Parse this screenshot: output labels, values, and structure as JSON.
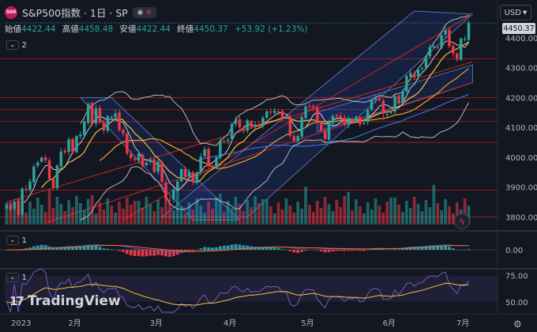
{
  "header": {
    "logo_text": "500",
    "symbol": "S&P500指数 · 1日 · SP",
    "eye_icon": "eye-icon",
    "wave_icon": "wave-icon"
  },
  "ohlc": {
    "open_label": "始値",
    "open": "4422.44",
    "high_label": "高値",
    "high": "4458.48",
    "low_label": "安値",
    "low": "4422.44",
    "close_label": "終値",
    "close": "4450.37",
    "change": "+53.92 (+1.23%)"
  },
  "indicator_count": "2",
  "pane2_label": "1",
  "pane3_label": "1",
  "currency": "USD",
  "last_price": "4450.37",
  "brand": "TradingView",
  "colors": {
    "up": "#26a69a",
    "down": "#f23645",
    "bg": "#131722"
  },
  "chart_data": {
    "type": "candlestick",
    "x_ticks": [
      "2023",
      "2月",
      "3月",
      "4月",
      "5月",
      "6月",
      "7月"
    ],
    "price_axis": {
      "ticks": [
        "4400.00",
        "4300.00",
        "4200.00",
        "4100.00",
        "4000.00",
        "3900.00",
        "3800.00"
      ],
      "ylim": [
        3780,
        4490
      ]
    },
    "macd_axis": {
      "ticks": [
        "0.00"
      ]
    },
    "rsi_axis": {
      "ticks": [
        "75.00",
        "50.00"
      ],
      "ylim": [
        40,
        80
      ]
    },
    "close_series": [
      3839,
      3824,
      3852,
      3808,
      3895,
      3892,
      3919,
      3969,
      3983,
      3999,
      3990,
      3928,
      3898,
      3972,
      4019,
      4016,
      4060,
      4017,
      4071,
      4076,
      4119,
      4179,
      4111,
      4164,
      4117,
      4090,
      4137,
      4136,
      4147,
      4090,
      4079,
      4012,
      3997,
      3991,
      4012,
      3970,
      3982,
      3992,
      3951,
      3986,
      3918,
      3861,
      3855,
      3891,
      3919,
      3960,
      3936,
      3951,
      3917,
      3949,
      4002,
      4027,
      3971,
      3964,
      4000,
      4056,
      4051,
      4059,
      4112,
      4127,
      4101,
      4091,
      4124,
      4100,
      4109,
      4105,
      4133,
      4154,
      4151,
      4156,
      4152,
      4130,
      4135,
      4072,
      4055,
      4071,
      4135,
      4170,
      4169,
      4167,
      4119,
      4090,
      4061,
      4117,
      4138,
      4137,
      4132,
      4109,
      4130,
      4124,
      4136,
      4110,
      4116,
      4158,
      4192,
      4198,
      4192,
      4146,
      4145,
      4151,
      4205,
      4180,
      4221,
      4273,
      4283,
      4267,
      4294,
      4299,
      4338,
      4369,
      4372,
      4369,
      4409,
      4425,
      4372,
      4348,
      4328,
      4398,
      4396,
      4450
    ]
  }
}
